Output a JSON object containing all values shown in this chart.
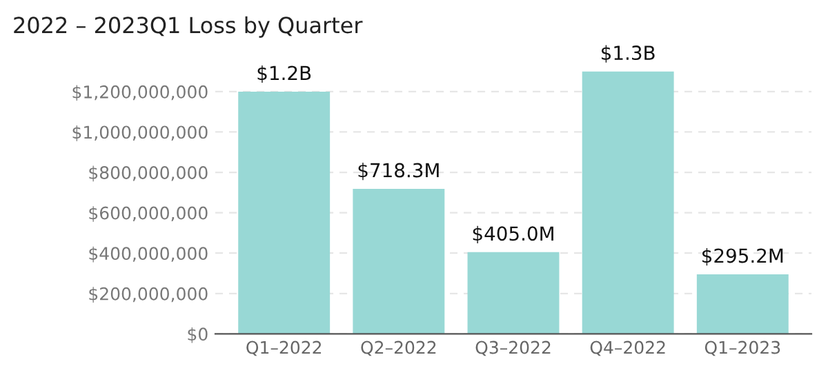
{
  "chart_data": {
    "type": "bar",
    "title": "2022 – 2023Q1 Loss by Quarter",
    "categories": [
      "Q1–2022",
      "Q2–2022",
      "Q3–2022",
      "Q4–2022",
      "Q1–2023"
    ],
    "values": [
      1200000000,
      718300000,
      405000000,
      1300000000,
      295200000
    ],
    "value_labels": [
      "$1.2B",
      "$718.3M",
      "$405.0M",
      "$1.3B",
      "$295.2M"
    ],
    "color": "#98d8d5",
    "ylim": [
      0,
      1300000000
    ],
    "yticks": [
      {
        "value": 0,
        "label": "$0"
      },
      {
        "value": 200000000,
        "label": "$200,000,000"
      },
      {
        "value": 400000000,
        "label": "$400,000,000"
      },
      {
        "value": 600000000,
        "label": "$600,000,000"
      },
      {
        "value": 800000000,
        "label": "$800,000,000"
      },
      {
        "value": 1000000000,
        "label": "$1,000,000,000"
      },
      {
        "value": 1200000000,
        "label": "$1,200,000,000"
      }
    ],
    "grid": "y",
    "legend": false
  }
}
